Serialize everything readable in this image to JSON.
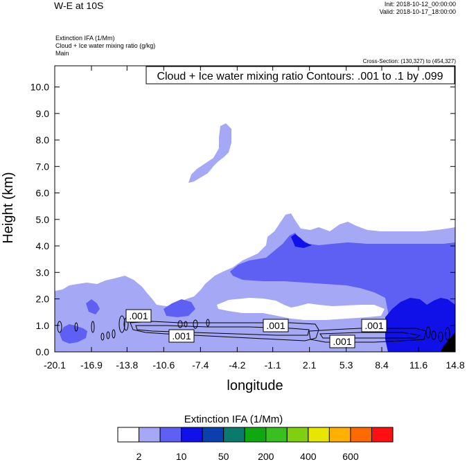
{
  "header": {
    "title": "W-E at 10S",
    "init": "Init: 2018-10-12_00:00:00",
    "valid": "Valid: 2018-10-17_18:00:00",
    "field_1": "Extinction IFA   (1/Mm)",
    "field_2": "Cloud + Ice water mixing ratio   (g/kg)",
    "field_3": "Main",
    "cross_section": "Cross-Section: (130,327) to (454,327)"
  },
  "chart_data": {
    "type": "heatmap",
    "overlay": "contour",
    "contour_title": "Cloud + Ice water mixing ratio Contours: .001 to .1 by .099",
    "contour_labels": [
      ".001",
      ".001",
      ".001",
      ".001",
      ".001"
    ],
    "xlabel": "longitude",
    "ylabel": "Height (km)",
    "xlim": [
      -20.1,
      14.8
    ],
    "ylim": [
      0.0,
      10.8
    ],
    "x_ticks": [
      "-20.1",
      "-16.9",
      "-13.8",
      "-10.6",
      "-7.4",
      "-4.2",
      "-1.1",
      "2.1",
      "5.3",
      "8.4",
      "11.6",
      "14.8"
    ],
    "y_ticks": [
      "0.0",
      "1.0",
      "2.0",
      "3.0",
      "4.0",
      "5.0",
      "6.0",
      "7.0",
      "8.0",
      "9.0",
      "10.0"
    ],
    "colorbar": {
      "title": "Extinction IFA  (1/Mm)",
      "colors": [
        "#ffffff",
        "#a5a8f5",
        "#5e5ff3",
        "#1010e8",
        "#0c3fae",
        "#0a7a6e",
        "#10a810",
        "#38c020",
        "#80d010",
        "#e6e600",
        "#ffb000",
        "#ff6a00",
        "#ff1010"
      ],
      "labels": [
        "2",
        "10",
        "50",
        "200",
        "400",
        "600"
      ]
    },
    "series": [
      {
        "level": 2,
        "color": "#a5a8f5"
      },
      {
        "level": 10,
        "color": "#5e5ff3"
      },
      {
        "level": 50,
        "color": "#1010e8"
      },
      {
        "level": 200,
        "color": "#000000"
      }
    ]
  }
}
